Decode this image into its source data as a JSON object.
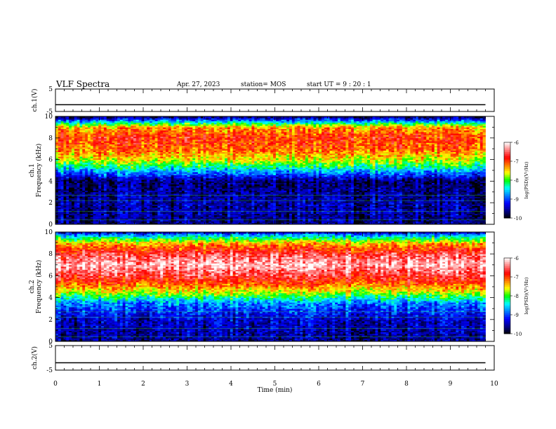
{
  "header": {
    "title": "VLF Spectra",
    "date": "Apr. 27, 2023",
    "station": "station= MOS",
    "start_ut": "start  UT =   9 : 20 : 1"
  },
  "chart_data": [
    {
      "type": "line",
      "panel": "ch1-waveform",
      "ylabel": "ch.1(V)",
      "ylim": [
        -5,
        5
      ],
      "yticks": [
        5,
        -5
      ],
      "xlim": [
        0,
        10
      ],
      "series": [
        {
          "x": [
            0,
            9.8
          ],
          "values": [
            -2.0,
            -2.0
          ]
        }
      ],
      "line_color": "#000000"
    },
    {
      "type": "heatmap",
      "panel": "ch1-spectrogram",
      "ylabel": "ch.1\nFrequency (kHz)",
      "ylim": [
        0,
        10
      ],
      "yticks": [
        0,
        2,
        4,
        6,
        8,
        10
      ],
      "xlim": [
        0,
        10
      ],
      "data_extent_min": 9.8,
      "band_profile": [
        {
          "freq_khz": 0,
          "log_psd": -9.6
        },
        {
          "freq_khz": 2,
          "log_psd": -9.5
        },
        {
          "freq_khz": 4,
          "log_psd": -9.7
        },
        {
          "freq_khz": 5,
          "log_psd": -8.6
        },
        {
          "freq_khz": 6,
          "log_psd": -7.6
        },
        {
          "freq_khz": 7,
          "log_psd": -7.1
        },
        {
          "freq_khz": 8,
          "log_psd": -6.9
        },
        {
          "freq_khz": 9,
          "log_psd": -7.3
        },
        {
          "freq_khz": 9.6,
          "log_psd": -8.8
        },
        {
          "freq_khz": 10,
          "log_psd": -9.8
        }
      ],
      "colorbar": {
        "label": "log(PSD)(V²/Hz)",
        "range": [
          -10,
          -6
        ],
        "ticks": [
          "-6",
          "-7",
          "-8",
          "-9",
          "-10"
        ]
      }
    },
    {
      "type": "heatmap",
      "panel": "ch2-spectrogram",
      "ylabel": "ch.2\nFrequency (kHz)",
      "ylim": [
        0,
        10
      ],
      "yticks": [
        0,
        2,
        4,
        6,
        8,
        10
      ],
      "xlim": [
        0,
        10
      ],
      "data_extent_min": 9.8,
      "band_profile": [
        {
          "freq_khz": 0,
          "log_psd": -9.6
        },
        {
          "freq_khz": 2,
          "log_psd": -9.4
        },
        {
          "freq_khz": 3.5,
          "log_psd": -8.8
        },
        {
          "freq_khz": 4.5,
          "log_psd": -7.7
        },
        {
          "freq_khz": 5.5,
          "log_psd": -6.9
        },
        {
          "freq_khz": 7,
          "log_psd": -6.2
        },
        {
          "freq_khz": 8,
          "log_psd": -6.6
        },
        {
          "freq_khz": 9,
          "log_psd": -7.4
        },
        {
          "freq_khz": 9.8,
          "log_psd": -8.8
        },
        {
          "freq_khz": 10,
          "log_psd": -9.6
        }
      ],
      "colorbar": {
        "label": "log(PSD)(V²/Hz)",
        "range": [
          -10,
          -6
        ],
        "ticks": [
          "-6",
          "-7",
          "-8",
          "-9",
          "-10"
        ]
      }
    },
    {
      "type": "line",
      "panel": "ch2-waveform",
      "ylabel": "ch.2(V)",
      "ylim": [
        -5,
        5
      ],
      "yticks": [
        5,
        -5
      ],
      "xlim": [
        0,
        10
      ],
      "series": [
        {
          "x": [
            0,
            9.8
          ],
          "values": [
            -2.0,
            -2.0
          ]
        }
      ],
      "line_color": "#000000"
    }
  ],
  "x_axis": {
    "label": "Time (min)",
    "range": [
      0,
      10
    ],
    "ticks": [
      "0",
      "1",
      "2",
      "3",
      "4",
      "5",
      "6",
      "7",
      "8",
      "9",
      "10"
    ]
  },
  "colormap": [
    "#000000",
    "#00008b",
    "#0000ff",
    "#0080ff",
    "#00ffff",
    "#00ff00",
    "#ffff00",
    "#ff8000",
    "#ff0000",
    "#ff8080",
    "#ffffff"
  ]
}
